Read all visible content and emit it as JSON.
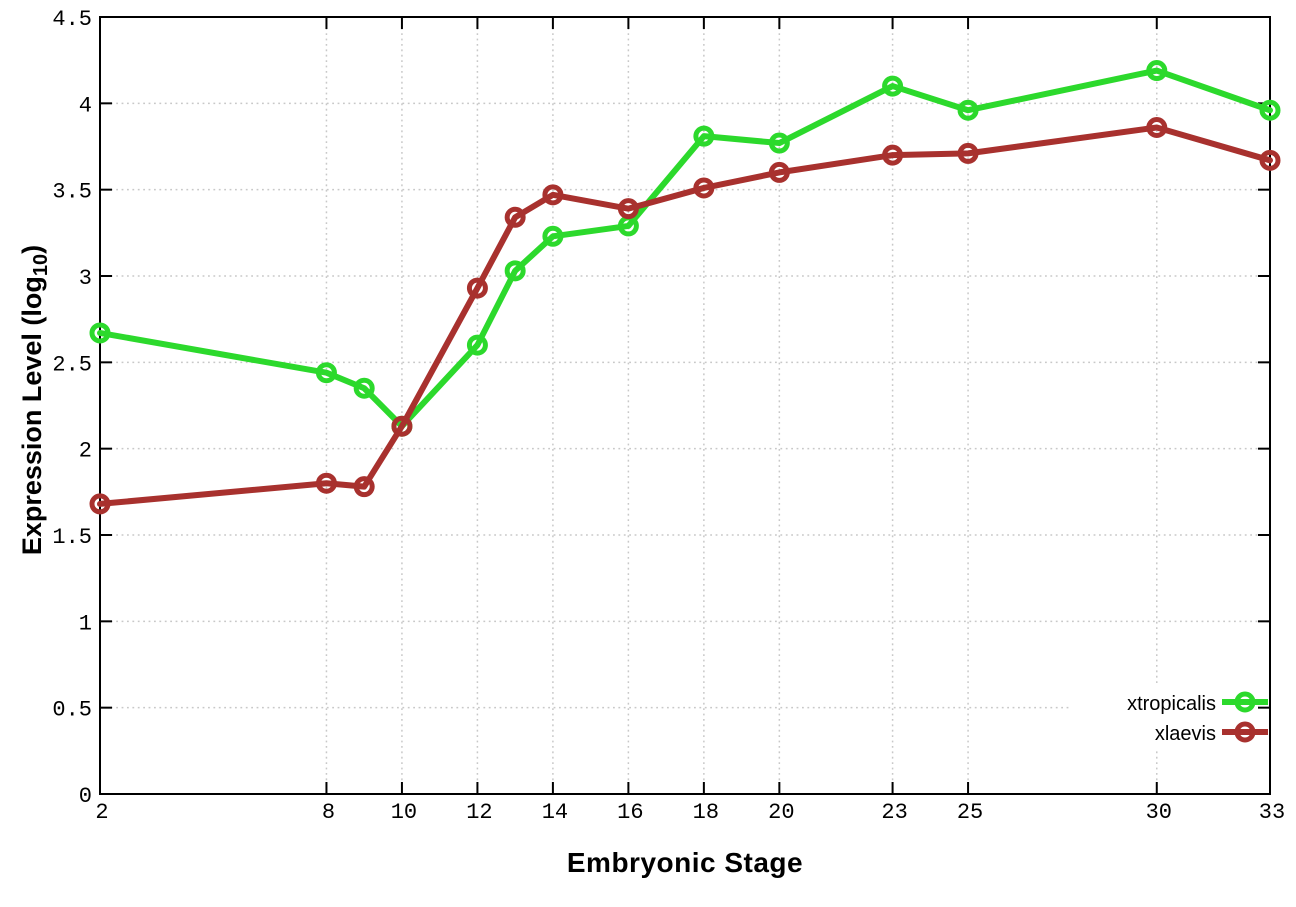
{
  "chart_data": {
    "type": "line",
    "title": "",
    "xlabel": "Embryonic Stage",
    "ylabel": "Expression Level (log10)",
    "ylabel_parts": {
      "main": "Expression Level (log",
      "sub": "10",
      "end": ")"
    },
    "x": [
      2,
      8,
      9,
      10,
      12,
      13,
      14,
      16,
      18,
      20,
      23,
      25,
      30,
      33
    ],
    "series": [
      {
        "name": "xtropicalis",
        "color": "#2cd92c",
        "marker": "open-circle",
        "values": [
          2.67,
          2.44,
          2.35,
          2.13,
          2.6,
          3.03,
          3.23,
          3.29,
          3.81,
          3.77,
          4.1,
          3.96,
          4.19,
          3.96
        ]
      },
      {
        "name": "xlaevis",
        "color": "#a8312e",
        "marker": "open-circle",
        "values": [
          1.68,
          1.8,
          1.78,
          2.13,
          2.93,
          3.34,
          3.47,
          3.39,
          3.51,
          3.6,
          3.7,
          3.71,
          3.86,
          3.67
        ]
      }
    ],
    "xlim": [
      2,
      33
    ],
    "ylim": [
      0,
      4.5
    ],
    "xticks": [
      2,
      8,
      10,
      12,
      14,
      16,
      18,
      20,
      23,
      25,
      30,
      33
    ],
    "xtick_labels": [
      "2",
      "8",
      "10",
      "12",
      "14",
      "16",
      "18",
      "20",
      "23",
      "25",
      "30",
      "33"
    ],
    "yticks": [
      0,
      0.5,
      1,
      1.5,
      2,
      2.5,
      3,
      3.5,
      4,
      4.5
    ],
    "ytick_labels": [
      "0",
      "0.5",
      "1",
      "1.5",
      "2",
      "2.5",
      "3",
      "3.5",
      "4",
      "4.5"
    ],
    "grid": true,
    "grid_style": "dotted",
    "legend_position": "bottom-right",
    "colors": {
      "background": "#ffffff",
      "axis": "#000000",
      "grid": "#c8c8c8",
      "xtropicalis": "#2cd92c",
      "xlaevis": "#a8312e"
    }
  }
}
